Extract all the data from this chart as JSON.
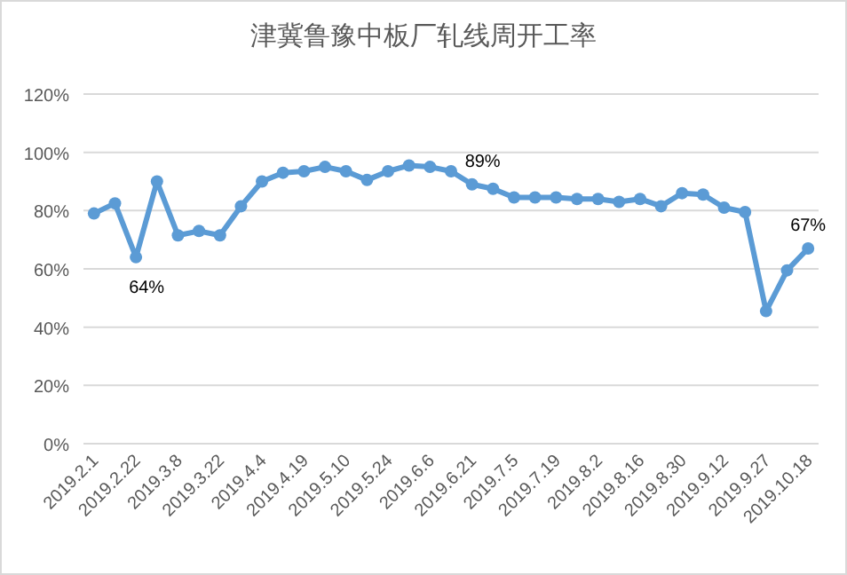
{
  "chart_data": {
    "type": "line",
    "title": "津冀鲁豫中板厂轧线周开工率",
    "categories": [
      "2019.2.1",
      null,
      "2019.2.22",
      null,
      "2019.3.8",
      null,
      "2019.3.22",
      null,
      "2019.4.4",
      null,
      "2019.4.19",
      null,
      "2019.5.10",
      null,
      "2019.5.24",
      null,
      "2019.6.6",
      null,
      "2019.6.21",
      null,
      "2019.7.5",
      null,
      "2019.7.19",
      null,
      "2019.8.2",
      null,
      "2019.8.16",
      null,
      "2019.8.30",
      null,
      "2019.9.12",
      null,
      "2019.9.27",
      null,
      "2019.10.18"
    ],
    "series": [
      {
        "color": "#5b9bd5",
        "values": [
          79,
          82.5,
          64,
          90,
          71.5,
          73,
          71.5,
          81.5,
          90,
          93,
          93.5,
          95,
          93.5,
          90.5,
          93.5,
          95.5,
          95,
          93.5,
          89,
          87.5,
          84.5,
          84.5,
          84.5,
          84,
          84,
          83,
          84,
          81.5,
          86,
          85.5,
          81,
          79.5,
          45.5,
          59.5,
          67
        ],
        "value_labels": [
          null,
          null,
          "64%",
          null,
          null,
          null,
          null,
          null,
          null,
          null,
          null,
          null,
          null,
          null,
          null,
          null,
          null,
          null,
          "89%",
          null,
          null,
          null,
          null,
          null,
          null,
          null,
          null,
          null,
          null,
          null,
          null,
          null,
          null,
          null,
          "67%"
        ]
      }
    ],
    "ylim": [
      0,
      120
    ],
    "yticks": [
      {
        "value": 0,
        "label": "0%"
      },
      {
        "value": 20,
        "label": "20%"
      },
      {
        "value": 40,
        "label": "40%"
      },
      {
        "value": 60,
        "label": "60%"
      },
      {
        "value": 80,
        "label": "80%"
      },
      {
        "value": 100,
        "label": "100%"
      },
      {
        "value": 120,
        "label": "120%"
      }
    ],
    "grid": "y",
    "marker": "circle",
    "line_style": "solid"
  }
}
